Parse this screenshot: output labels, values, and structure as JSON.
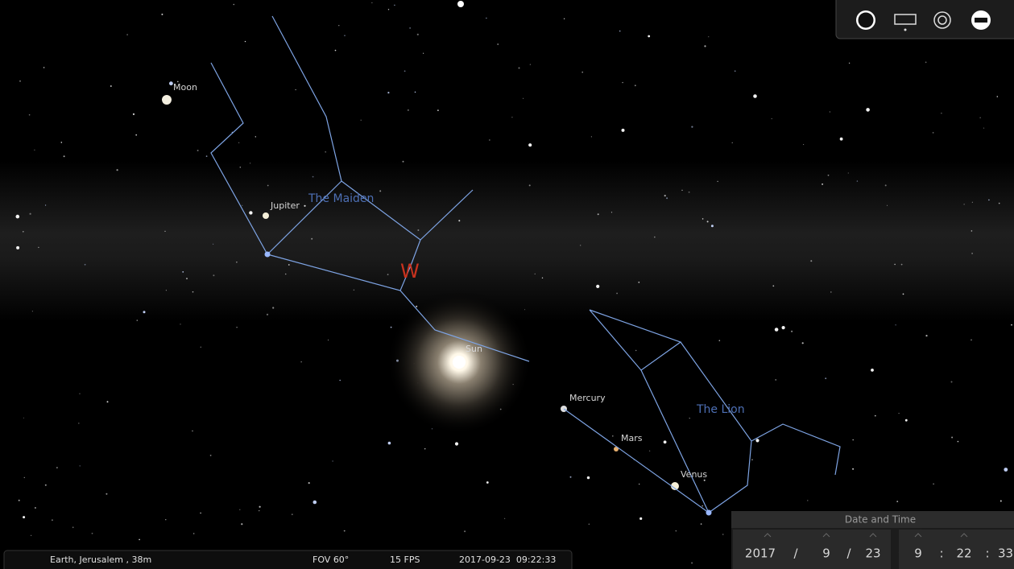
{
  "sky_labels": {
    "moon": "Moon",
    "jupiter": "Jupiter",
    "maiden": "The Maiden",
    "west": "W",
    "sun": "Sun",
    "mercury": "Mercury",
    "mars": "Mars",
    "venus": "Venus",
    "lion": "The Lion"
  },
  "status_bar": {
    "location": "Earth, Jerusalem , 38m",
    "fov": "FOV 60°",
    "fps": "15 FPS",
    "datetime": "2017-09-23  09:22:33"
  },
  "date_panel": {
    "title": "Date and Time",
    "year": "2017",
    "date_separator": "/",
    "month": "9",
    "day": "23",
    "hour": "9",
    "time_separator": ":",
    "minute": "22",
    "second": "33"
  }
}
